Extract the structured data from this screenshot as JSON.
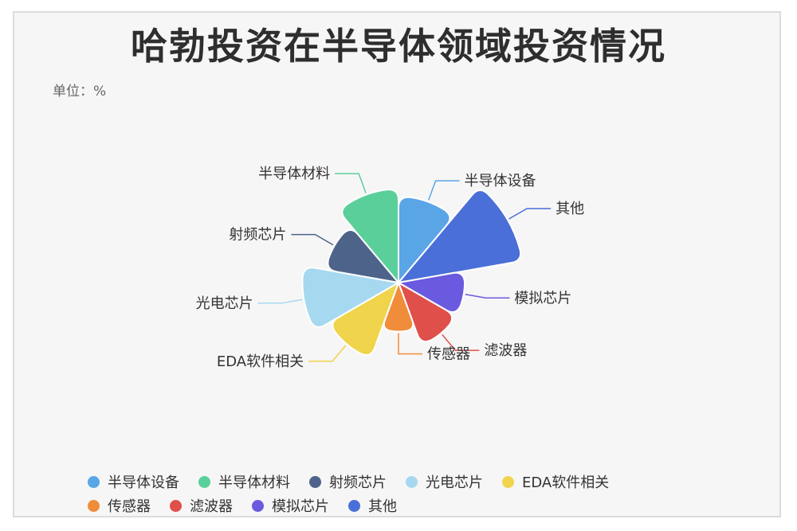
{
  "title": "哈勃投资在半导体领域投资情况",
  "unit": "单位：%",
  "chart_data": {
    "type": "pie",
    "subtype": "nightingale-rose",
    "title": "哈勃投资在半导体领域投资情况",
    "unit": "单位：%",
    "legend_position": "bottom",
    "slices": [
      {
        "name": "半导体设备",
        "value": 10,
        "color": "#5aa5e6"
      },
      {
        "name": "其他",
        "value": 30,
        "color": "#4a6fd8"
      },
      {
        "name": "模拟芯片",
        "value": 4,
        "color": "#6a5ae0"
      },
      {
        "name": "滤波器",
        "value": 4,
        "color": "#e0504a"
      },
      {
        "name": "传感器",
        "value": 1,
        "color": "#ef8d3b"
      },
      {
        "name": "EDA软件相关",
        "value": 8,
        "color": "#efd44c"
      },
      {
        "name": "光电芯片",
        "value": 14,
        "color": "#a6d9f0"
      },
      {
        "name": "射频芯片",
        "value": 6,
        "color": "#4e6389"
      },
      {
        "name": "半导体材料",
        "value": 13,
        "color": "#5bcf9a"
      }
    ]
  },
  "legend_rows": [
    [
      "半导体设备",
      "半导体材料",
      "射频芯片",
      "光电芯片",
      "EDA软件相关"
    ],
    [
      "传感器",
      "滤波器",
      "模拟芯片",
      "其他"
    ]
  ]
}
